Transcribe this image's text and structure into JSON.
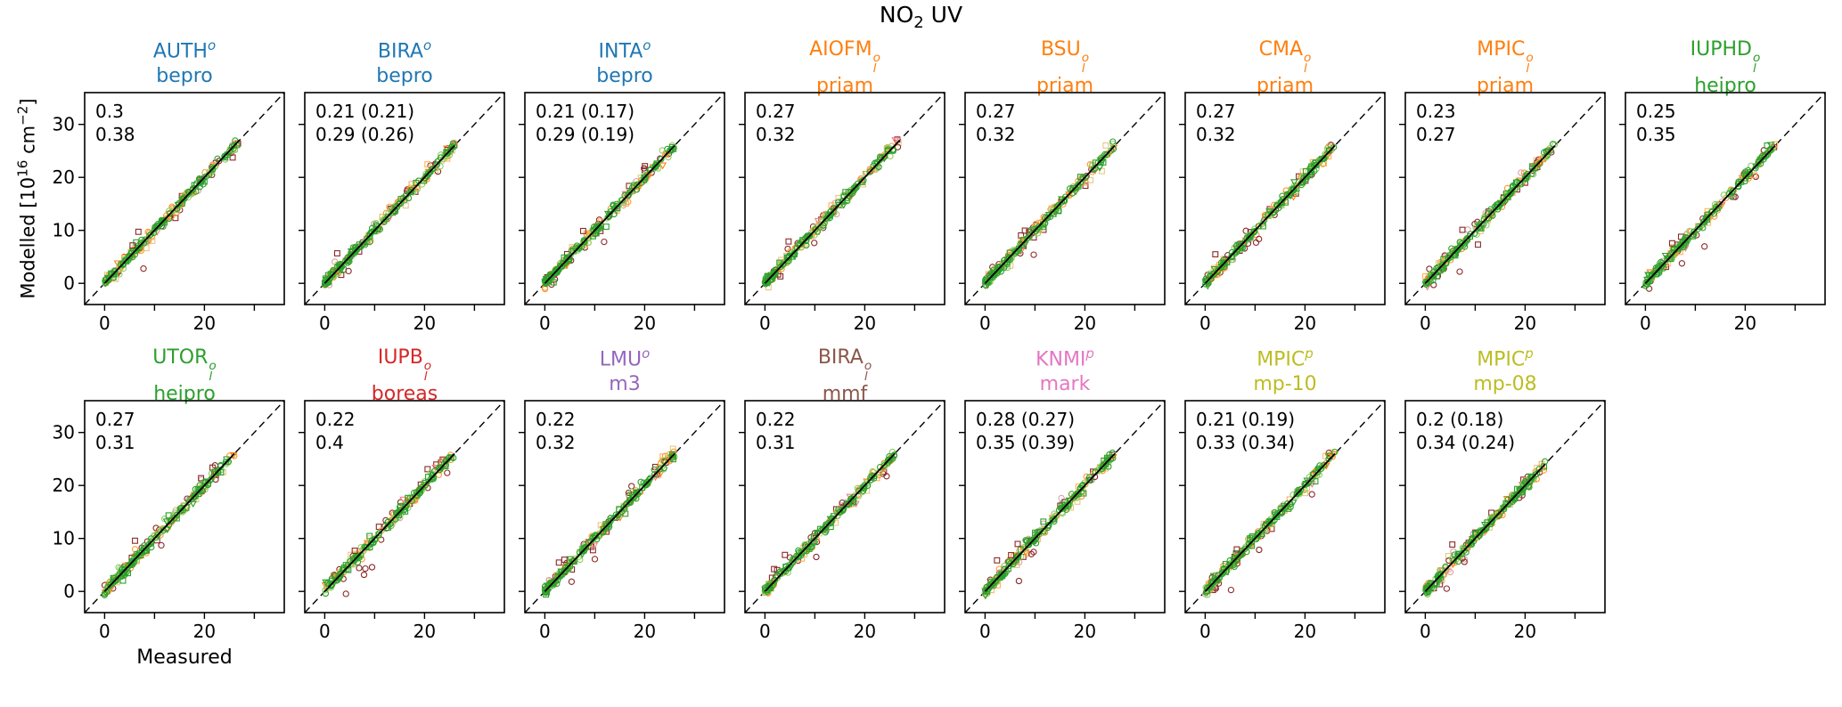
{
  "figure": {
    "suptitle": {
      "pre": "NO",
      "sub": "2",
      "post": " UV"
    },
    "ylabel": {
      "p1": "Modelled [10",
      "sup1": "16",
      "p2": " cm",
      "sup2": "−2",
      "p3": "]"
    },
    "xlabel": "Measured",
    "annotation_colors": {
      "green": "#3d8b37",
      "darkred": "#8b2323"
    }
  },
  "chart_data": {
    "type": "scatter",
    "title": "NO2 UV",
    "xlabel": "Measured",
    "ylabel": "Modelled [10^16 cm^-2]",
    "xlim": [
      -4,
      36
    ],
    "ylim": [
      -4,
      36
    ],
    "xticks": [
      0,
      10,
      20,
      30
    ],
    "yticks": [
      0,
      10,
      20,
      30
    ],
    "xtick_label_values": [
      0,
      20
    ],
    "xtick_labels": [
      "0",
      "20"
    ],
    "ytick_labels": [
      "0",
      "10",
      "20",
      "30"
    ],
    "grid": "off",
    "identity_line": "black dashed 1:1 diagonal line in every panel",
    "fit_line": "solid black line along the data core",
    "point_summary": "Each panel: dense cloud of open circle/square/triangle markers (greens, oranges, dark red, tan, pink) lying tightly on the 1:1 line from 0 to about 27 (units 10^16 cm^-2); a few dark-red outliers off the line",
    "marker_series": [
      {
        "color": "#e7c887",
        "marker": "square",
        "n": 10,
        "noise": 0.85
      },
      {
        "color": "#dba2ad",
        "marker": "circle",
        "n": 6,
        "noise": 0.8
      },
      {
        "color": "#8b2a2a",
        "marker": "circle",
        "n": 15,
        "noise": 1.0
      },
      {
        "color": "#8b2a2a",
        "marker": "square",
        "n": 7,
        "noise": 1.1
      },
      {
        "color": "#ffb257",
        "marker": "square",
        "n": 9,
        "noise": 0.6
      },
      {
        "color": "#ff9832",
        "marker": "circle",
        "n": 32,
        "noise": 0.55
      },
      {
        "color": "#f08080",
        "marker": "triangle",
        "n": 5,
        "noise": 0.7
      },
      {
        "color": "#ff7f0e",
        "marker": "triangle",
        "n": 10,
        "noise": 0.6
      },
      {
        "color": "#8fcf63",
        "marker": "circle",
        "n": 38,
        "noise": 0.5
      },
      {
        "color": "#2ca02c",
        "marker": "square",
        "n": 16,
        "noise": 0.6
      },
      {
        "color": "#2ca02c",
        "marker": "triangle",
        "n": 8,
        "noise": 0.55
      },
      {
        "color": "#2ca02c",
        "marker": "circle",
        "n": 85,
        "noise": 0.42
      }
    ],
    "rows": [
      [
        {
          "name": "AUTH",
          "sub": "",
          "sup": "o",
          "algorithm": "bepro",
          "color": "#1f77b4",
          "stat_green": "0.3",
          "stat_red": "0.38",
          "show_yticklabels": true,
          "seed": 101,
          "xmax": 27,
          "outliers_below": 1,
          "outliers_above": 2
        },
        {
          "name": "BIRA",
          "sub": "",
          "sup": "o",
          "algorithm": "bepro",
          "color": "#1f77b4",
          "stat_green": "0.21 (0.21)",
          "stat_red": "0.29 (0.26)",
          "show_yticklabels": false,
          "seed": 102,
          "xmax": 26,
          "outliers_below": 1,
          "outliers_above": 1
        },
        {
          "name": "INTA",
          "sub": "",
          "sup": "o",
          "algorithm": "bepro",
          "color": "#1f77b4",
          "stat_green": "0.21 (0.17)",
          "stat_red": "0.29 (0.19)",
          "show_yticklabels": false,
          "seed": 103,
          "xmax": 26,
          "outliers_below": 1,
          "outliers_above": 1
        },
        {
          "name": "AIOFM",
          "sub": "l",
          "sup": "o",
          "algorithm": "priam",
          "color": "#ff7f0e",
          "stat_green": "0.27",
          "stat_red": "0.32",
          "show_yticklabels": false,
          "seed": 104,
          "xmax": 27,
          "outliers_below": 1,
          "outliers_above": 1
        },
        {
          "name": "BSU",
          "sub": "l",
          "sup": "o",
          "algorithm": "priam",
          "color": "#ff7f0e",
          "stat_green": "0.27",
          "stat_red": "0.32",
          "show_yticklabels": false,
          "seed": 105,
          "xmax": 26,
          "outliers_below": 1,
          "outliers_above": 1
        },
        {
          "name": "CMA",
          "sub": "l",
          "sup": "o",
          "algorithm": "priam",
          "color": "#ff7f0e",
          "stat_green": "0.27",
          "stat_red": "0.32",
          "show_yticklabels": false,
          "seed": 106,
          "xmax": 26,
          "outliers_below": 2,
          "outliers_above": 1
        },
        {
          "name": "MPIC",
          "sub": "l",
          "sup": "o",
          "algorithm": "priam",
          "color": "#ff7f0e",
          "stat_green": "0.23",
          "stat_red": "0.27",
          "show_yticklabels": false,
          "seed": 107,
          "xmax": 26,
          "outliers_below": 1,
          "outliers_above": 1
        },
        {
          "name": "IUPHD",
          "sub": "l",
          "sup": "o",
          "algorithm": "heipro",
          "color": "#2ca02c",
          "stat_green": "0.25",
          "stat_red": "0.35",
          "show_yticklabels": false,
          "seed": 108,
          "xmax": 26,
          "outliers_below": 2,
          "outliers_above": 1
        }
      ],
      [
        {
          "name": "UTOR",
          "sub": "l",
          "sup": "o",
          "algorithm": "heipro",
          "color": "#2ca02c",
          "stat_green": "0.27",
          "stat_red": "0.31",
          "show_yticklabels": true,
          "seed": 109,
          "xmax": 26,
          "outliers_below": 1,
          "outliers_above": 1
        },
        {
          "name": "IUPB",
          "sub": "l",
          "sup": "o",
          "algorithm": "boreas",
          "color": "#d62728",
          "stat_green": "0.22",
          "stat_red": "0.4",
          "show_yticklabels": false,
          "seed": 110,
          "xmax": 26,
          "outliers_below": 5,
          "outliers_above": 1
        },
        {
          "name": "LMU",
          "sub": "",
          "sup": "o",
          "algorithm": "m3",
          "color": "#9467bd",
          "stat_green": "0.22",
          "stat_red": "0.32",
          "show_yticklabels": false,
          "seed": 111,
          "xmax": 26,
          "outliers_below": 2,
          "outliers_above": 2
        },
        {
          "name": "BIRA",
          "sub": "l",
          "sup": "o",
          "algorithm": "mmf",
          "color": "#8c564b",
          "stat_green": "0.22",
          "stat_red": "0.31",
          "show_yticklabels": false,
          "seed": 112,
          "xmax": 26,
          "outliers_below": 1,
          "outliers_above": 1
        },
        {
          "name": "KNMI",
          "sub": "",
          "sup": "p",
          "algorithm": "mark",
          "color": "#e377c2",
          "stat_green": "0.28 (0.27)",
          "stat_red": "0.35 (0.39)",
          "show_yticklabels": false,
          "seed": 113,
          "xmax": 26,
          "outliers_below": 3,
          "outliers_above": 3
        },
        {
          "name": "MPIC",
          "sub": "",
          "sup": "p",
          "algorithm": "mp-10",
          "color": "#bcbd22",
          "stat_green": "0.21 (0.19)",
          "stat_red": "0.33 (0.34)",
          "show_yticklabels": false,
          "seed": 114,
          "xmax": 26,
          "outliers_below": 2,
          "outliers_above": 1
        },
        {
          "name": "MPIC",
          "sub": "",
          "sup": "p",
          "algorithm": "mp-08",
          "color": "#bcbd22",
          "stat_green": "0.2 (0.18)",
          "stat_red": "0.34 (0.24)",
          "show_yticklabels": false,
          "seed": 115,
          "xmax": 24,
          "outliers_below": 2,
          "outliers_above": 1
        }
      ]
    ]
  }
}
